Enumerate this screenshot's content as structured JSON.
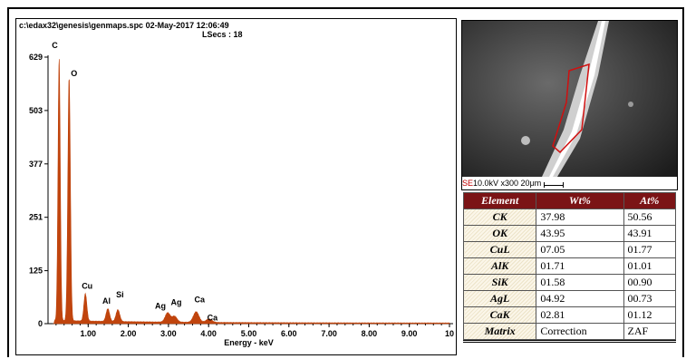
{
  "spectrum": {
    "header_line1": "c:\\edax32\\genesis\\genmaps.spc  02-May-2017 12:06:49",
    "header_line2": "LSecs :  18",
    "chart_data": {
      "type": "line",
      "xlabel": "Energy - keV",
      "ylabel": "",
      "xlim": [
        0,
        10
      ],
      "ylim": [
        0,
        629
      ],
      "y_ticks": [
        "629",
        "503",
        "377",
        "251",
        "125",
        "0"
      ],
      "x_ticks": [
        "1.00",
        "2.00",
        "3.00",
        "4.00",
        "5.00",
        "6.00",
        "7.00",
        "8.00",
        "9.00",
        "10"
      ],
      "color": "#c0440d",
      "peaks": [
        {
          "label": "C",
          "energy": 0.277,
          "counts": 620
        },
        {
          "label": "O",
          "energy": 0.525,
          "counts": 575
        },
        {
          "label": "Cu",
          "energy": 0.93,
          "counts": 65
        },
        {
          "label": "Al",
          "energy": 1.49,
          "counts": 30
        },
        {
          "label": "Si",
          "energy": 1.74,
          "counts": 28
        },
        {
          "label": "Ag",
          "energy": 2.98,
          "counts": 22
        },
        {
          "label": "Ag",
          "energy": 3.15,
          "counts": 14
        },
        {
          "label": "Ca",
          "energy": 3.69,
          "counts": 25
        },
        {
          "label": "Ca",
          "energy": 4.01,
          "counts": 8
        }
      ]
    }
  },
  "sem": {
    "detector": "SE",
    "info": "10.0kV  x300  20μm"
  },
  "composition_table": {
    "headers": [
      "Element",
      "Wt%",
      "At%"
    ],
    "rows": [
      {
        "element": "CK",
        "wt": "37.98",
        "at": "50.56"
      },
      {
        "element": "OK",
        "wt": "43.95",
        "at": "43.91"
      },
      {
        "element": "CuL",
        "wt": "07.05",
        "at": "01.77"
      },
      {
        "element": "AlK",
        "wt": "01.71",
        "at": "01.01"
      },
      {
        "element": "SiK",
        "wt": "01.58",
        "at": "00.90"
      },
      {
        "element": "AgL",
        "wt": "04.92",
        "at": "00.73"
      },
      {
        "element": "CaK",
        "wt": "02.81",
        "at": "01.12"
      },
      {
        "element": "Matrix",
        "wt": "Correction",
        "at": "ZAF"
      }
    ]
  }
}
